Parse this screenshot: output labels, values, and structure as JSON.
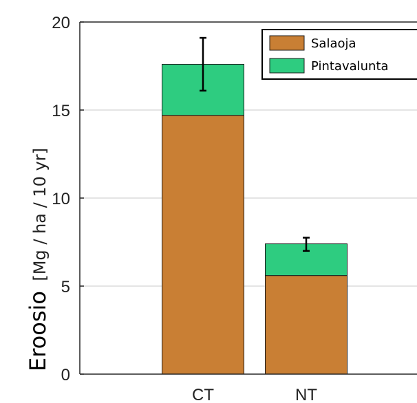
{
  "chart_data": {
    "type": "bar",
    "stacked": true,
    "categories": [
      "CT",
      "NT"
    ],
    "series": [
      {
        "name": "Salaoja",
        "values": [
          14.7,
          5.6
        ],
        "color": "#c97f34"
      },
      {
        "name": "Pintavalunta",
        "values": [
          2.9,
          1.8
        ],
        "color": "#2ecc80"
      }
    ],
    "error_bars": [
      {
        "category": "CT",
        "center": 17.6,
        "low": 16.1,
        "high": 19.1
      },
      {
        "category": "NT",
        "center": 7.4,
        "low": 7.0,
        "high": 7.75
      }
    ],
    "ylabel": "Eroosio",
    "ylabel_unit": "[Mg / ha / 10 yr]",
    "ylim": [
      0,
      20
    ],
    "yticks": [
      0,
      5,
      10,
      15,
      20
    ],
    "grid": true,
    "legend_position": "top-right"
  }
}
